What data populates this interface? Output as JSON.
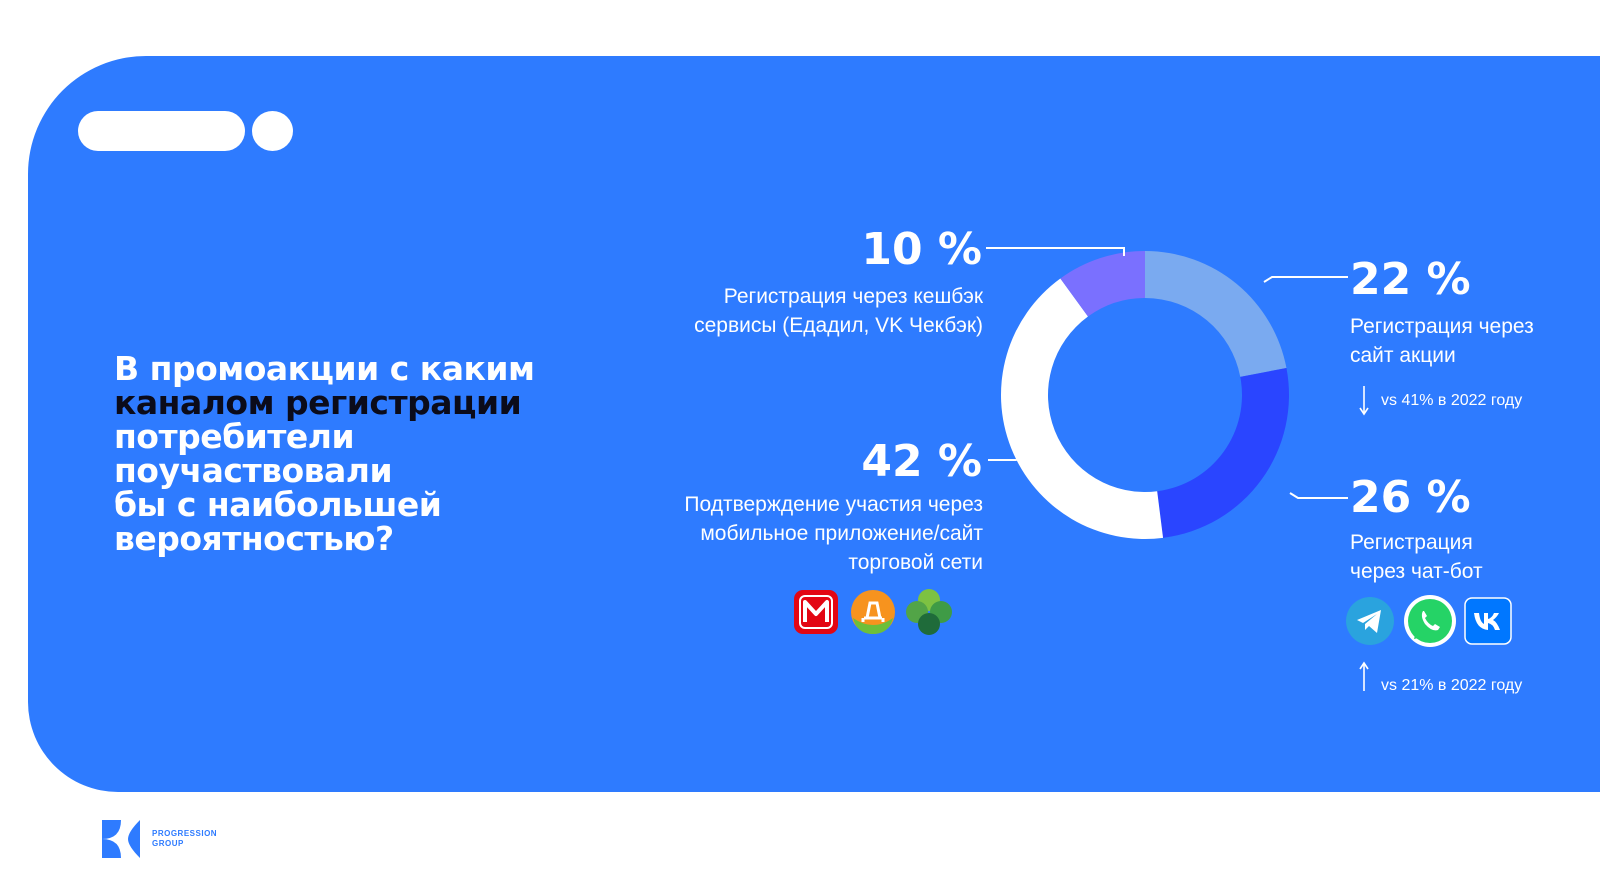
{
  "question": {
    "part1": "В промоакции с каким",
    "part2": "каналом регистрации",
    "part3": "потребители",
    "part4": "поучаствовали",
    "part5": "бы с наибольшей",
    "part6": "вероятностью?"
  },
  "chart_data": {
    "type": "pie",
    "subtype": "donut",
    "slices": [
      {
        "label": "Регистрация через сайт акции",
        "value": 22,
        "display": "22 %",
        "color": "#7aaaf0"
      },
      {
        "label": "Регистрация через чат-бот",
        "value": 26,
        "display": "26 %",
        "color": "#2a45ff"
      },
      {
        "label": "Подтверждение участия через мобильное приложение/сайт торговой сети",
        "value": 42,
        "display": "42 %",
        "color": "#ffffff"
      },
      {
        "label": "Регистрация через кешбэк сервисы (Едадил, VK Чекбэк)",
        "value": 10,
        "display": "10 %",
        "color": "#7a70ff"
      }
    ]
  },
  "annotations": {
    "site": {
      "pct": "22 %",
      "line1": "Регистрация через",
      "line2": "сайт акции",
      "vs": "vs 41% в 2022 году",
      "trend": "down"
    },
    "chatbot": {
      "pct": "26 %",
      "line1": "Регистрация",
      "line2": "через чат-бот",
      "vs": "vs 21% в 2022 году",
      "trend": "up"
    },
    "app": {
      "pct": "42 %",
      "line1": "Подтверждение участия через",
      "line2": "мобильное приложение/сайт",
      "line3": "торговой сети"
    },
    "cashback": {
      "pct": "10 %",
      "line1": "Регистрация через кешбэк",
      "line2": "сервисы (Едадил, VK Чекбэк)"
    }
  },
  "icons": {
    "retail": [
      "magnit-logo-icon",
      "dixy-logo-icon",
      "perekrestok-logo-icon"
    ],
    "messengers": [
      "telegram-icon",
      "whatsapp-icon",
      "vk-icon"
    ]
  },
  "footer": {
    "brand_line1": "PROGRESSION",
    "brand_line2": "GROUP"
  },
  "colors": {
    "background": "#2e7bff",
    "highlight_text": "#0b0b1a"
  }
}
